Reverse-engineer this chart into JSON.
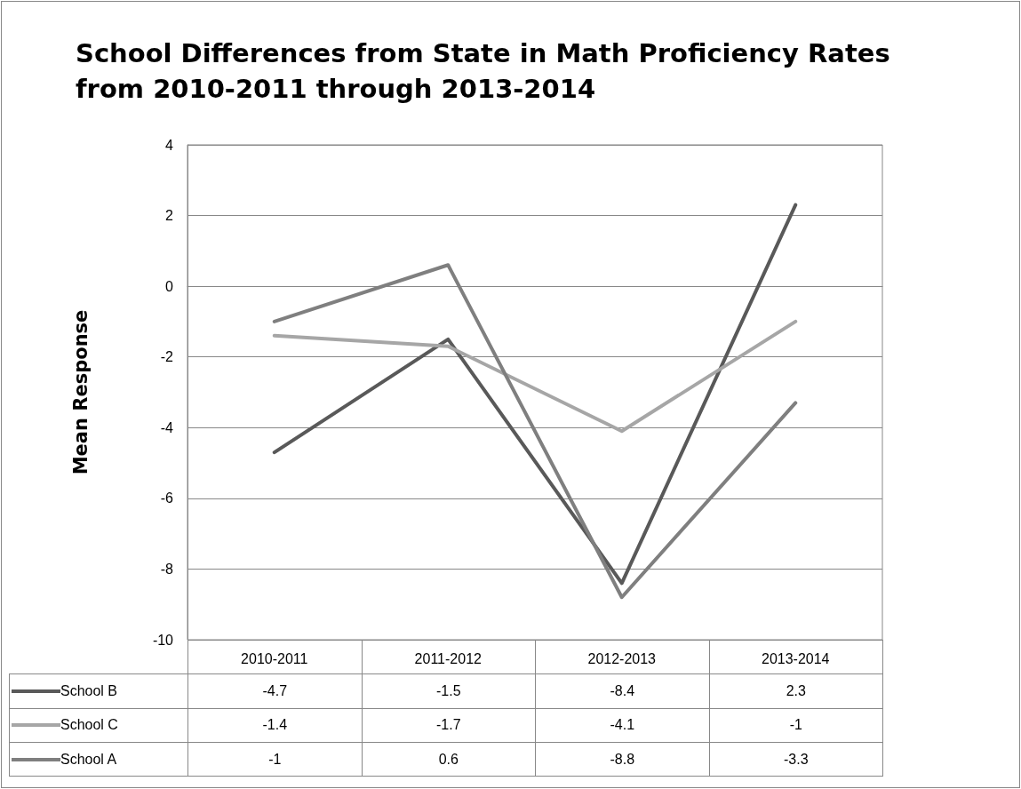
{
  "chart_data": {
    "type": "line",
    "title": "School Differences from State in Math Proficiency Rates\nfrom 2010-2011 through 2013-2014",
    "ylabel": "Mean Response",
    "categories": [
      "2010-2011",
      "2011-2012",
      "2012-2013",
      "2013-2014"
    ],
    "series": [
      {
        "name": "School B",
        "color": "#595959",
        "values": [
          -4.7,
          -1.5,
          -8.4,
          2.3
        ]
      },
      {
        "name": "School C",
        "color": "#a6a6a6",
        "values": [
          -1.4,
          -1.7,
          -4.1,
          -1
        ]
      },
      {
        "name": "School A",
        "color": "#7f7f7f",
        "values": [
          -1,
          0.6,
          -8.8,
          -3.3
        ]
      }
    ],
    "ylim": [
      -10,
      4
    ],
    "yticks": [
      -10,
      -8,
      -6,
      -4,
      -2,
      0,
      2,
      4
    ],
    "grid": "y",
    "legend": "bottom",
    "data_labels": true,
    "marker": "none",
    "line_style": "solid"
  }
}
